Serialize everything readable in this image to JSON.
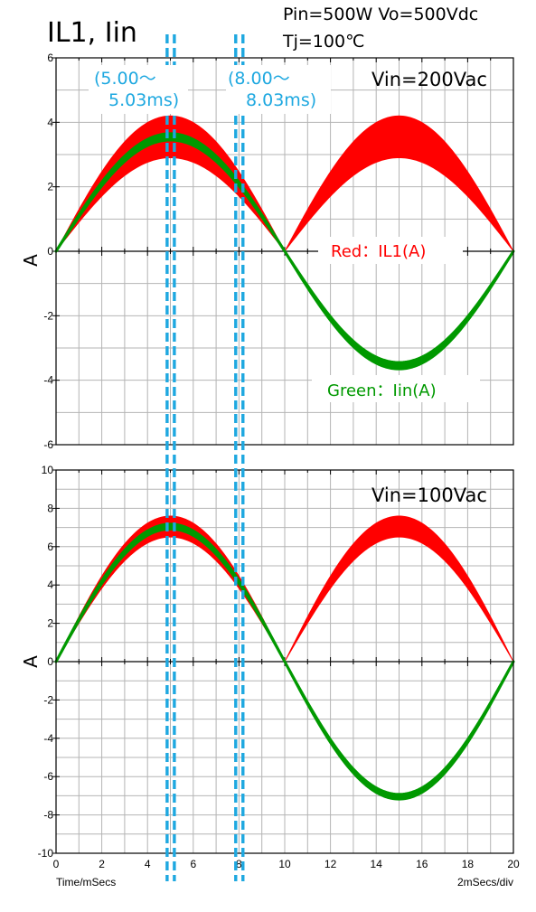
{
  "header": {
    "title": "IL1, Iin",
    "conditions_line1": "Pin=500W  Vo=500Vdc",
    "conditions_line2": "Tj=100℃"
  },
  "footer": {
    "x_axis_label": "Time/mSecs",
    "scale_label": "2mSecs/div"
  },
  "annotations": {
    "window1_line1": "(5.00～",
    "window1_line2": "5.03ms)",
    "window2_line1": "(8.00～",
    "window2_line2": "8.03ms)",
    "window1_ms": [
      5.0,
      5.03
    ],
    "window2_ms": [
      8.0,
      8.03
    ],
    "marker_color": "#1ea8e0"
  },
  "legend": {
    "red": "Red：IL1(A)",
    "green": "Green：Iin(A)"
  },
  "colors": {
    "il1": "#ff0000",
    "iin": "#009900",
    "grid": "#b4b4b4"
  },
  "chart_data": [
    {
      "type": "line",
      "panel_label": "Vin=200Vac",
      "ylabel": "A",
      "xlim": [
        0,
        20
      ],
      "ylim": [
        -6,
        6
      ],
      "y_ticks": [
        -6,
        -4,
        -2,
        0,
        2,
        4,
        6
      ],
      "grid": true,
      "series": [
        {
          "name": "IL1(A)",
          "style": "ripple-band",
          "color": "#ff0000",
          "envelope": "rectified-sine",
          "peak_upper": 4.2,
          "peak_lower": 2.9
        },
        {
          "name": "Iin(A)",
          "style": "thick-line",
          "color": "#009900",
          "envelope": "sine",
          "peak": 3.55,
          "band": 0.2
        }
      ]
    },
    {
      "type": "line",
      "panel_label": "Vin=100Vac",
      "ylabel": "A",
      "xlim": [
        0,
        20
      ],
      "ylim": [
        -10,
        10
      ],
      "y_ticks": [
        -10,
        -8,
        -6,
        -4,
        -2,
        0,
        2,
        4,
        6,
        8,
        10
      ],
      "x_ticks": [
        0,
        2,
        4,
        6,
        8,
        10,
        12,
        14,
        16,
        18,
        20
      ],
      "grid": true,
      "series": [
        {
          "name": "IL1(A)",
          "style": "ripple-band",
          "color": "#ff0000",
          "envelope": "rectified-sine",
          "peak_upper": 7.6,
          "peak_lower": 6.5
        },
        {
          "name": "Iin(A)",
          "style": "thick-line",
          "color": "#009900",
          "envelope": "sine",
          "peak": 7.05,
          "band": 0.25
        }
      ]
    }
  ]
}
